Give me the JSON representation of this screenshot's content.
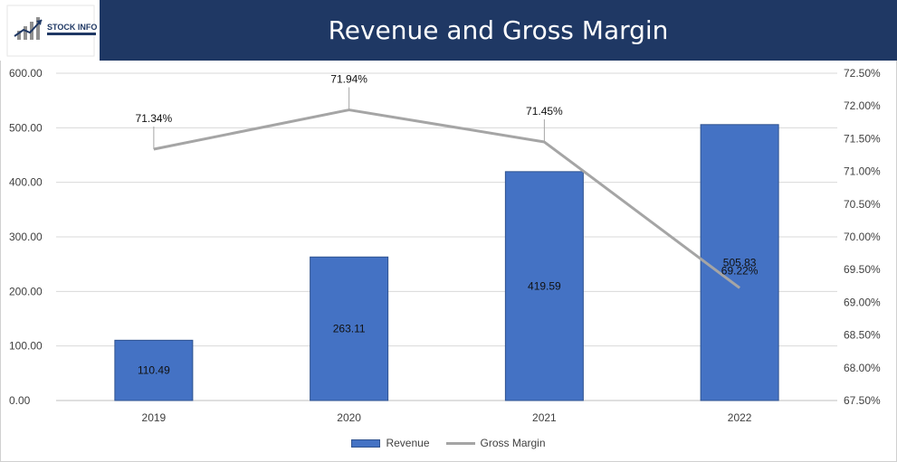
{
  "logo": {
    "text": "STOCK INFO",
    "colors": {
      "navy": "#1f3864",
      "gray": "#7f7f7f"
    }
  },
  "chart_data": {
    "type": "bar",
    "title": "Revenue and Gross Margin",
    "categories": [
      "2019",
      "2020",
      "2021",
      "2022"
    ],
    "series": [
      {
        "name": "Revenue",
        "type": "bar",
        "axis": "left",
        "values": [
          110.49,
          263.11,
          419.59,
          505.83
        ],
        "labels": [
          "110.49",
          "263.11",
          "419.59",
          "505.83"
        ],
        "color": "#4472c4"
      },
      {
        "name": "Gross Margin",
        "type": "line",
        "axis": "right",
        "values": [
          71.34,
          71.94,
          71.45,
          69.22
        ],
        "labels": [
          "71.34%",
          "71.94%",
          "71.45%",
          "69.22%"
        ],
        "color": "#a5a5a5"
      }
    ],
    "y_left": {
      "min": 0,
      "max": 600,
      "ticks": [
        "0.00",
        "100.00",
        "200.00",
        "300.00",
        "400.00",
        "500.00",
        "600.00"
      ]
    },
    "y_right": {
      "min": 67.5,
      "max": 72.5,
      "ticks": [
        "67.50%",
        "68.00%",
        "68.50%",
        "69.00%",
        "69.50%",
        "70.00%",
        "70.50%",
        "71.00%",
        "71.50%",
        "72.00%",
        "72.50%"
      ]
    },
    "grid": true,
    "legend": "bottom",
    "header_color": "#1f3864"
  }
}
